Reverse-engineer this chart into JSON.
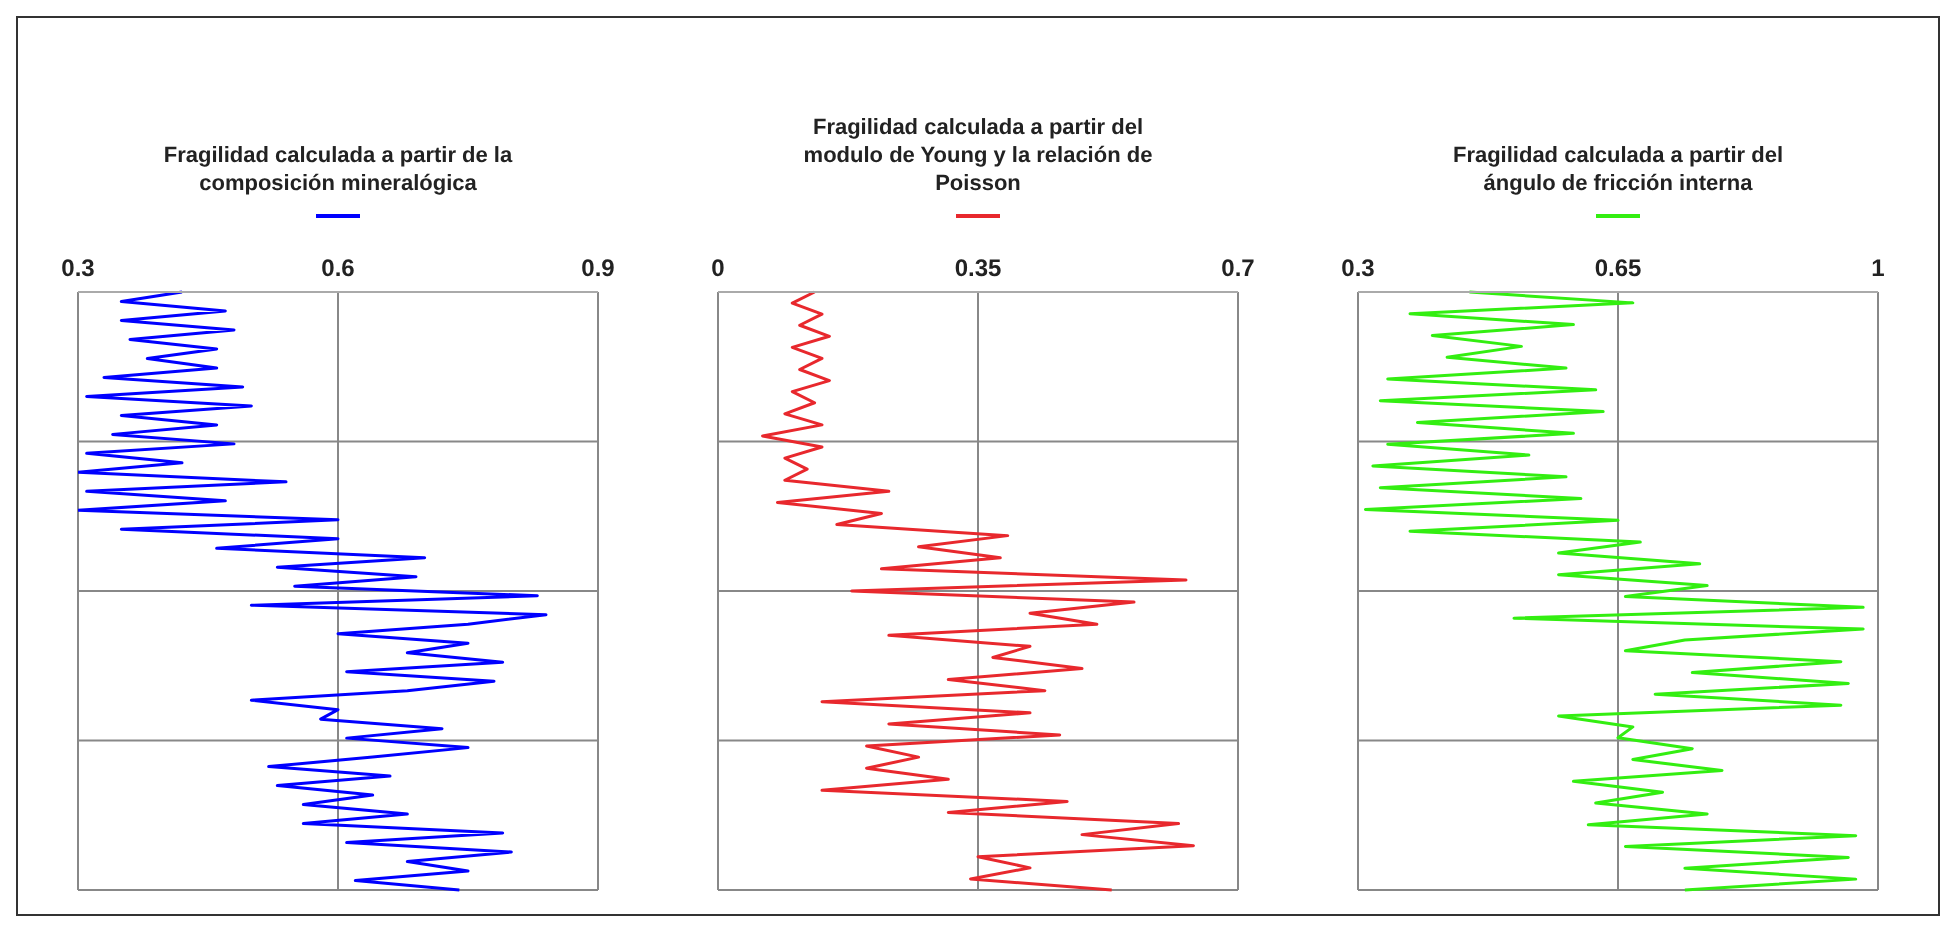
{
  "chart_data": [
    {
      "type": "line",
      "orientation": "horizontal",
      "legend": "top",
      "grid": true,
      "marker": "none",
      "line_style": "solid",
      "xlim": [
        0.3,
        0.9
      ],
      "xticks": [
        0.3,
        0.6,
        0.9
      ],
      "categories": [
        null,
        null,
        null,
        null,
        null,
        null,
        null,
        null,
        null,
        null,
        null,
        null,
        null,
        null,
        null,
        null,
        null,
        null,
        null,
        null,
        null,
        null,
        null,
        null,
        null,
        null,
        null,
        null,
        null,
        null,
        null,
        null,
        null,
        null,
        null,
        null,
        null,
        null,
        null,
        null,
        null,
        null,
        null,
        null,
        null,
        null,
        null,
        null,
        null,
        null,
        null,
        null,
        null,
        null,
        null,
        null,
        null,
        null,
        null,
        null,
        null,
        null,
        null,
        null
      ],
      "series": [
        {
          "name": "Fragilidad calculada a partir de la composición mineralógica",
          "color": "#0000ff",
          "values": [
            0.42,
            0.35,
            0.47,
            0.35,
            0.48,
            0.36,
            0.46,
            0.38,
            0.46,
            0.33,
            0.49,
            0.31,
            0.5,
            0.35,
            0.46,
            0.34,
            0.48,
            0.31,
            0.42,
            0.3,
            0.54,
            0.31,
            0.47,
            0.3,
            0.6,
            0.35,
            0.6,
            0.46,
            0.7,
            0.53,
            0.69,
            0.55,
            0.83,
            0.5,
            0.84,
            0.75,
            0.6,
            0.75,
            0.68,
            0.79,
            0.61,
            0.78,
            0.68,
            0.5,
            0.6,
            0.58,
            0.72,
            0.61,
            0.75,
            0.64,
            0.52,
            0.66,
            0.53,
            0.64,
            0.56,
            0.68,
            0.56,
            0.79,
            0.61,
            0.8,
            0.68,
            0.75,
            0.62,
            0.74
          ]
        }
      ]
    },
    {
      "type": "line",
      "orientation": "horizontal",
      "legend": "top",
      "grid": true,
      "marker": "none",
      "line_style": "solid",
      "xlim": [
        0,
        0.7
      ],
      "xticks": [
        0,
        0.35,
        0.7
      ],
      "categories": [
        null,
        null,
        null,
        null,
        null,
        null,
        null,
        null,
        null,
        null,
        null,
        null,
        null,
        null,
        null,
        null,
        null,
        null,
        null,
        null,
        null,
        null,
        null,
        null,
        null,
        null,
        null,
        null,
        null,
        null,
        null,
        null,
        null,
        null,
        null,
        null,
        null,
        null,
        null,
        null,
        null,
        null,
        null,
        null,
        null,
        null,
        null,
        null,
        null,
        null,
        null,
        null,
        null,
        null,
        null
      ],
      "series": [
        {
          "name": "Fragilidad calculada a partir del modulo de Young y la relación de Poisson",
          "color": "#e8282d",
          "values": [
            0.13,
            0.1,
            0.14,
            0.11,
            0.15,
            0.1,
            0.14,
            0.11,
            0.15,
            0.1,
            0.13,
            0.09,
            0.14,
            0.06,
            0.14,
            0.09,
            0.12,
            0.09,
            0.23,
            0.08,
            0.22,
            0.16,
            0.39,
            0.27,
            0.38,
            0.22,
            0.63,
            0.18,
            0.56,
            0.42,
            0.51,
            0.23,
            0.42,
            0.37,
            0.49,
            0.31,
            0.44,
            0.14,
            0.42,
            0.23,
            0.46,
            0.2,
            0.27,
            0.2,
            0.31,
            0.14,
            0.47,
            0.31,
            0.62,
            0.49,
            0.64,
            0.35,
            0.42,
            0.34,
            0.53
          ]
        }
      ]
    },
    {
      "type": "line",
      "orientation": "horizontal",
      "legend": "top",
      "grid": true,
      "marker": "none",
      "line_style": "solid",
      "xlim": [
        0.3,
        1
      ],
      "xticks": [
        0.3,
        0.65,
        1
      ],
      "categories": [
        null,
        null,
        null,
        null,
        null,
        null,
        null,
        null,
        null,
        null,
        null,
        null,
        null,
        null,
        null,
        null,
        null,
        null,
        null,
        null,
        null,
        null,
        null,
        null,
        null,
        null,
        null,
        null,
        null,
        null,
        null,
        null,
        null,
        null,
        null,
        null,
        null,
        null,
        null,
        null,
        null,
        null,
        null,
        null,
        null,
        null,
        null,
        null,
        null,
        null,
        null,
        null,
        null,
        null,
        null,
        null
      ],
      "series": [
        {
          "name": "Fragilidad calculada a partir del ángulo de fricción interna",
          "color": "#33ee11",
          "values": [
            0.45,
            0.67,
            0.37,
            0.59,
            0.4,
            0.52,
            0.42,
            0.58,
            0.34,
            0.62,
            0.33,
            0.63,
            0.38,
            0.59,
            0.34,
            0.53,
            0.32,
            0.58,
            0.33,
            0.6,
            0.31,
            0.65,
            0.37,
            0.68,
            0.57,
            0.76,
            0.57,
            0.77,
            0.66,
            0.98,
            0.51,
            0.98,
            0.74,
            0.66,
            0.95,
            0.75,
            0.96,
            0.7,
            0.95,
            0.57,
            0.67,
            0.65,
            0.75,
            0.67,
            0.79,
            0.59,
            0.71,
            0.62,
            0.77,
            0.61,
            0.97,
            0.66,
            0.96,
            0.74,
            0.97,
            0.74
          ]
        }
      ]
    }
  ]
}
